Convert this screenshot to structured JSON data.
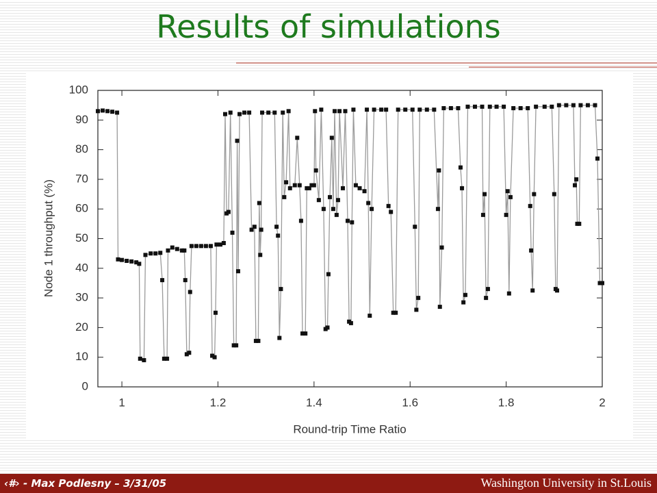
{
  "title": "Results of simulations",
  "footer": {
    "left": "‹#› - Max Podlesny – 3/31/05",
    "right": "Washington University in St.Louis"
  },
  "chart_data": {
    "type": "line",
    "xlabel": "Round-trip Time Ratio",
    "ylabel": "Node 1 throughput (%)",
    "xlim": [
      0.95,
      2
    ],
    "xticks": [
      1,
      1.2,
      1.4,
      1.6,
      1.8,
      2
    ],
    "ylim": [
      0,
      100
    ],
    "yticks": [
      0,
      10,
      20,
      30,
      40,
      50,
      60,
      70,
      80,
      90,
      100
    ],
    "color": "#111111",
    "line_color": "#9a9a9a",
    "grid": false,
    "x": [
      0.95,
      0.96,
      0.97,
      0.98,
      0.99,
      0.992,
      1.0,
      1.01,
      1.02,
      1.03,
      1.036,
      1.038,
      1.046,
      1.049,
      1.06,
      1.07,
      1.08,
      1.084,
      1.088,
      1.094,
      1.096,
      1.105,
      1.115,
      1.125,
      1.13,
      1.132,
      1.135,
      1.14,
      1.142,
      1.145,
      1.155,
      1.165,
      1.175,
      1.185,
      1.188,
      1.193,
      1.195,
      1.197,
      1.205,
      1.212,
      1.215,
      1.218,
      1.222,
      1.226,
      1.23,
      1.233,
      1.238,
      1.24,
      1.242,
      1.245,
      1.255,
      1.265,
      1.27,
      1.276,
      1.279,
      1.284,
      1.286,
      1.288,
      1.29,
      1.292,
      1.305,
      1.318,
      1.322,
      1.325,
      1.328,
      1.331,
      1.335,
      1.338,
      1.342,
      1.347,
      1.35,
      1.36,
      1.365,
      1.37,
      1.373,
      1.376,
      1.382,
      1.385,
      1.39,
      1.395,
      1.4,
      1.402,
      1.404,
      1.41,
      1.415,
      1.42,
      1.424,
      1.428,
      1.43,
      1.433,
      1.437,
      1.44,
      1.443,
      1.447,
      1.45,
      1.453,
      1.46,
      1.465,
      1.47,
      1.473,
      1.477,
      1.479,
      1.482,
      1.487,
      1.495,
      1.505,
      1.51,
      1.513,
      1.516,
      1.52,
      1.525,
      1.54,
      1.55,
      1.555,
      1.56,
      1.565,
      1.57,
      1.575,
      1.59,
      1.605,
      1.61,
      1.613,
      1.617,
      1.62,
      1.635,
      1.65,
      1.658,
      1.66,
      1.662,
      1.666,
      1.67,
      1.685,
      1.7,
      1.705,
      1.708,
      1.711,
      1.715,
      1.72,
      1.735,
      1.75,
      1.752,
      1.755,
      1.758,
      1.762,
      1.766,
      1.78,
      1.795,
      1.8,
      1.803,
      1.806,
      1.809,
      1.815,
      1.83,
      1.845,
      1.85,
      1.852,
      1.855,
      1.858,
      1.862,
      1.88,
      1.895,
      1.9,
      1.903,
      1.906,
      1.91,
      1.925,
      1.94,
      1.943,
      1.946,
      1.948,
      1.952,
      1.955,
      1.97,
      1.985,
      1.99,
      1.995,
      2.0
    ],
    "values": [
      93,
      93.2,
      93,
      92.8,
      92.5,
      43,
      42.8,
      42.5,
      42.3,
      42,
      41.5,
      9.5,
      9,
      44.5,
      45,
      45,
      45.2,
      36,
      9.5,
      9.5,
      46,
      47,
      46.5,
      46,
      46,
      36,
      11,
      11.5,
      32,
      47.5,
      47.5,
      47.5,
      47.5,
      47.5,
      10.5,
      10,
      25,
      48,
      48,
      48.5,
      92,
      58.5,
      59,
      92.5,
      52,
      14,
      14,
      83,
      39,
      92,
      92.5,
      92.5,
      53,
      54,
      15.5,
      15.5,
      62,
      44.5,
      53,
      92.5,
      92.5,
      92.5,
      54,
      51,
      16.5,
      33,
      92.5,
      64,
      69,
      93,
      67,
      68,
      84,
      68,
      56,
      18,
      18,
      67,
      67,
      68,
      68,
      93,
      73,
      63,
      93.5,
      60,
      19.5,
      20,
      38,
      64,
      84,
      60,
      93,
      58,
      63,
      93,
      67,
      93,
      56,
      22,
      21.5,
      55.5,
      93.5,
      68,
      67,
      66,
      93.5,
      62,
      24,
      60,
      93.5,
      93.5,
      93.5,
      61,
      59,
      25,
      25,
      93.5,
      93.5,
      93.5,
      54,
      26,
      30,
      93.5,
      93.5,
      93.5,
      60,
      73,
      27,
      47,
      94,
      94,
      94,
      74,
      67,
      28.5,
      31,
      94.5,
      94.5,
      94.5,
      58,
      65,
      30,
      33,
      94.5,
      94.5,
      94.5,
      58,
      66,
      31.5,
      64,
      94,
      94,
      94,
      61,
      46,
      32.5,
      65,
      94.5,
      94.5,
      94.5,
      65,
      33,
      32.5,
      95,
      95,
      95,
      68,
      70,
      55,
      55,
      95,
      95,
      95,
      77,
      35,
      35
    ]
  }
}
